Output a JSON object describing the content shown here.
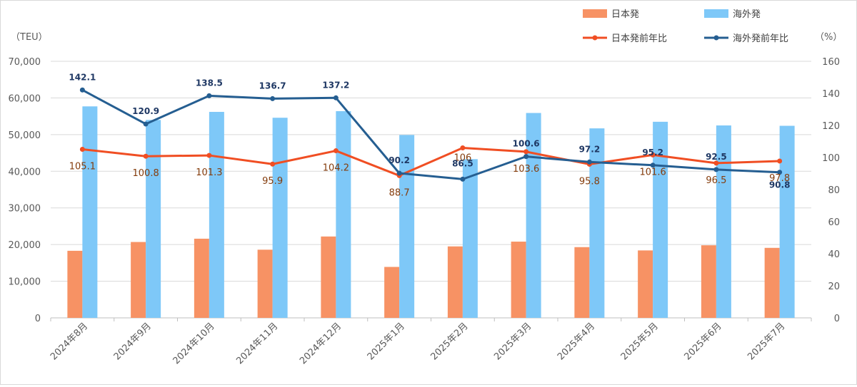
{
  "chart_data": {
    "type": "bar",
    "categories": [
      "2024年8月",
      "2024年9月",
      "2024年10月",
      "2024年11月",
      "2024年12月",
      "2025年1月",
      "2025年2月",
      "2025年3月",
      "2025年4月",
      "2025年5月",
      "2025年6月",
      "2025年7月"
    ],
    "series": [
      {
        "name": "日本発",
        "kind": "bar",
        "axis": "left",
        "color": "#f79264",
        "values": [
          18300,
          20700,
          21600,
          18600,
          22200,
          13900,
          19500,
          20800,
          19300,
          18400,
          19800,
          19100
        ]
      },
      {
        "name": "海外発",
        "kind": "bar",
        "axis": "left",
        "color": "#7ec8f8",
        "values": [
          57700,
          54000,
          56200,
          54600,
          56400,
          49900,
          43300,
          55900,
          51700,
          53500,
          52500,
          52400
        ]
      },
      {
        "name": "日本発前年比",
        "kind": "line",
        "axis": "right",
        "color": "#f04e23",
        "values": [
          105.1,
          100.8,
          101.3,
          95.9,
          104.2,
          88.7,
          106,
          103.6,
          95.8,
          101.6,
          96.5,
          97.8
        ],
        "labels": [
          "105.1",
          "100.8",
          "101.3",
          "95.9",
          "104.2",
          "88.7",
          "106",
          "103.6",
          "95.8",
          "101.6",
          "96.5",
          "97.8"
        ]
      },
      {
        "name": "海外発前年比",
        "kind": "line",
        "axis": "right",
        "color": "#255e91",
        "values": [
          142.1,
          120.9,
          138.5,
          136.7,
          137.2,
          90.2,
          86.5,
          100.6,
          97.2,
          95.2,
          92.5,
          90.8
        ],
        "labels": [
          "142.1",
          "120.9",
          "138.5",
          "136.7",
          "137.2",
          "90.2",
          "86.5",
          "100.6",
          "97.2",
          "95.2",
          "92.5",
          "90.8"
        ]
      }
    ],
    "y_left": {
      "unit": "（TEU）",
      "min": 0,
      "max": 70000,
      "ticks": [
        "0",
        "10,000",
        "20,000",
        "30,000",
        "40,000",
        "50,000",
        "60,000",
        "70,000"
      ]
    },
    "y_right": {
      "unit": "（%）",
      "min": 0,
      "max": 160,
      "ticks": [
        "0",
        "20",
        "40",
        "60",
        "80",
        "100",
        "120",
        "140",
        "160"
      ]
    },
    "legend_position": "top-right",
    "grid": true
  }
}
